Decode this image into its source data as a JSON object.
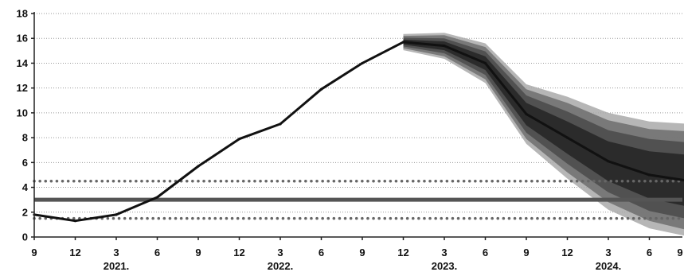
{
  "chart_data": {
    "type": "line",
    "title": "",
    "xlabel": "",
    "ylabel": "",
    "ylim": [
      0,
      18
    ],
    "y_ticks": [
      "0",
      "2",
      "4",
      "6",
      "8",
      "10",
      "12",
      "14",
      "16",
      "18"
    ],
    "x_tick_labels": [
      "9",
      "12",
      "3",
      "6",
      "9",
      "12",
      "3",
      "6",
      "9",
      "12",
      "3",
      "6",
      "9",
      "12",
      "3",
      "6",
      "9"
    ],
    "year_labels": [
      "2021.",
      "2022.",
      "2023.",
      "2024."
    ],
    "grid": "horizontal dotted",
    "series": [
      {
        "values": [
          1.8,
          1.3,
          1.8,
          3.2,
          5.7,
          7.9,
          9.1,
          11.9,
          14.0,
          15.7,
          15.4,
          14.0,
          9.9,
          8.0,
          6.1,
          5.0,
          4.5
        ]
      }
    ],
    "projection_bands": {
      "start_index": 9,
      "center": [
        15.7,
        15.4,
        14.0,
        9.9,
        8.0,
        6.1,
        5.0,
        4.5
      ],
      "half_widths": [
        [
          0.2,
          0.35,
          0.55,
          0.9,
          1.3,
          1.6,
          1.9,
          2.1
        ],
        [
          0.35,
          0.6,
          0.95,
          1.5,
          2.1,
          2.5,
          2.9,
          3.1
        ],
        [
          0.5,
          0.85,
          1.3,
          2.0,
          2.8,
          3.3,
          3.7,
          4.0
        ],
        [
          0.65,
          1.05,
          1.6,
          2.4,
          3.3,
          3.9,
          4.3,
          4.6
        ]
      ],
      "colors": [
        "#2b2b2b",
        "#4a4a4a",
        "#6f6f6f",
        "#a9a9a9"
      ]
    },
    "reference_lines": [
      {
        "value": 3,
        "style": "solid"
      },
      {
        "value": 4.5,
        "style": "dotted"
      },
      {
        "value": 1.5,
        "style": "dotted"
      }
    ],
    "colors": {
      "line": "#111111",
      "target": "#555555",
      "tolerance": "#666666",
      "grid": "#9a9a9a",
      "axis": "#222222"
    }
  }
}
